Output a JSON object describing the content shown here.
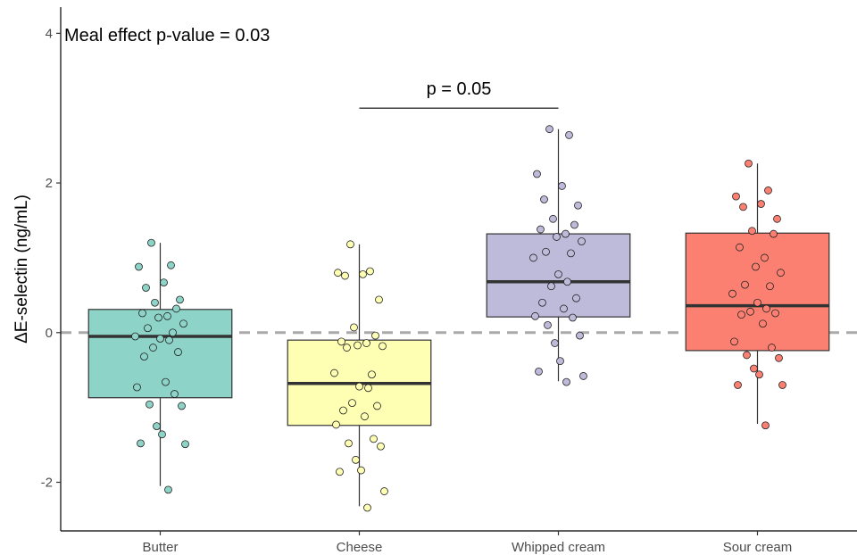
{
  "chart_data": {
    "type": "box",
    "ylabel": "ΔE-selectin (ng/mL)",
    "ylim": [
      -2.65,
      4.35
    ],
    "yticks": [
      -2,
      0,
      2,
      4
    ],
    "ytick_labels": [
      "-2",
      "0",
      "2",
      "4"
    ],
    "reference_line": {
      "y": 0,
      "style": "dashed",
      "color": "#aaaaaa"
    },
    "annotation": "Meal effect p-value = 0.03",
    "comparison": {
      "from": "Cheese",
      "to": "Whipped cream",
      "y": 3.0,
      "label": "p = 0.05"
    },
    "categories": [
      "Butter",
      "Cheese",
      "Whipped cream",
      "Sour cream"
    ],
    "colors": [
      "#8dd3c7",
      "#ffffb3",
      "#bebada",
      "#fb8072"
    ],
    "boxes": [
      {
        "name": "Butter",
        "whisker_low": -2.05,
        "q1": -0.87,
        "median": -0.05,
        "q3": 0.31,
        "whisker_high": 1.2
      },
      {
        "name": "Cheese",
        "whisker_low": -2.32,
        "q1": -1.24,
        "median": -0.68,
        "q3": -0.1,
        "whisker_high": 1.18
      },
      {
        "name": "Whipped cream",
        "whisker_low": -0.65,
        "q1": 0.21,
        "median": 0.68,
        "q3": 1.32,
        "whisker_high": 2.72
      },
      {
        "name": "Sour cream",
        "whisker_low": -1.22,
        "q1": -0.24,
        "median": 0.36,
        "q3": 1.33,
        "whisker_high": 2.26
      }
    ],
    "points": [
      [
        1.2,
        0.9,
        0.88,
        0.67,
        0.6,
        0.44,
        0.4,
        0.32,
        0.26,
        0.22,
        0.2,
        0.12,
        0.06,
        0.0,
        -0.05,
        -0.08,
        -0.1,
        -0.2,
        -0.26,
        -0.32,
        -0.66,
        -0.73,
        -0.82,
        -0.96,
        -0.98,
        -1.25,
        -1.36,
        -1.48,
        -1.49,
        -2.1
      ],
      [
        1.18,
        0.82,
        0.8,
        0.78,
        0.76,
        0.44,
        0.07,
        -0.04,
        -0.12,
        -0.14,
        -0.17,
        -0.18,
        -0.2,
        -0.56,
        -0.54,
        -0.72,
        -0.74,
        -0.94,
        -0.98,
        -1.04,
        -1.12,
        -1.23,
        -1.42,
        -1.48,
        -1.52,
        -1.7,
        -1.84,
        -1.86,
        -2.12,
        -2.34
      ],
      [
        2.72,
        2.64,
        2.12,
        1.96,
        1.78,
        1.7,
        1.52,
        1.44,
        1.38,
        1.32,
        1.28,
        1.22,
        1.08,
        1.06,
        1.0,
        0.78,
        0.68,
        0.62,
        0.46,
        0.4,
        0.32,
        0.22,
        0.2,
        0.1,
        -0.04,
        -0.14,
        -0.38,
        -0.52,
        -0.58,
        -0.66
      ],
      [
        2.26,
        1.9,
        1.82,
        1.72,
        1.68,
        1.52,
        1.36,
        1.32,
        1.14,
        1.0,
        0.88,
        0.8,
        0.64,
        0.62,
        0.52,
        0.4,
        0.32,
        0.28,
        0.26,
        0.24,
        0.12,
        -0.12,
        -0.2,
        -0.3,
        -0.34,
        -0.48,
        -0.56,
        -0.7,
        -0.7,
        -1.24
      ]
    ]
  }
}
